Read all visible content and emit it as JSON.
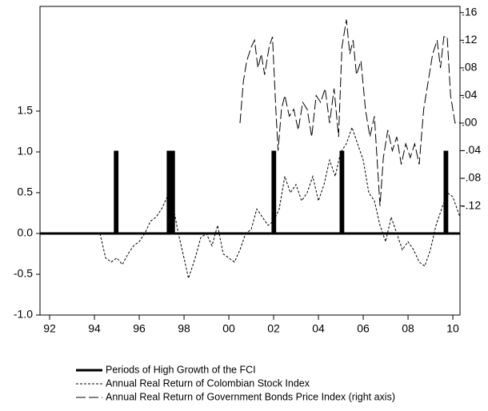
{
  "chart_data": {
    "type": "line",
    "xlim": [
      1991.57,
      2010.32
    ],
    "xticks": [
      {
        "value": 1992,
        "label": "92"
      },
      {
        "value": 1994,
        "label": "94"
      },
      {
        "value": 1996,
        "label": "96"
      },
      {
        "value": 1998,
        "label": "98"
      },
      {
        "value": 2000,
        "label": "00"
      },
      {
        "value": 2002,
        "label": "02"
      },
      {
        "value": 2004,
        "label": "04"
      },
      {
        "value": 2006,
        "label": "06"
      },
      {
        "value": 2008,
        "label": "08"
      },
      {
        "value": 2010,
        "label": "10"
      }
    ],
    "ylim": [
      -1.0,
      2.784
    ],
    "yticks": [
      {
        "value": -1.0,
        "label": "-1.0"
      },
      {
        "value": -0.5,
        "label": "-0.5"
      },
      {
        "value": 0.0,
        "label": "0.0"
      },
      {
        "value": 0.5,
        "label": "0.5"
      },
      {
        "value": 1.0,
        "label": "1.0"
      },
      {
        "value": 1.5,
        "label": "1.5"
      }
    ],
    "y2lim": [
      -0.278,
      0.169
    ],
    "y2ticks": [
      {
        "value": -0.12,
        "label": "-.12"
      },
      {
        "value": -0.08,
        "label": "-.08"
      },
      {
        "value": -0.04,
        "label": "-.04"
      },
      {
        "value": 0.0,
        "label": ".00"
      },
      {
        "value": 0.04,
        "label": ".04"
      },
      {
        "value": 0.08,
        "label": ".08"
      },
      {
        "value": 0.12,
        "label": ".12"
      },
      {
        "value": 0.16,
        "label": ".16"
      }
    ],
    "series": [
      {
        "name": "Periods of High Growth of the FCI",
        "color": "#000000",
        "line_style": "solid",
        "line_width": 3,
        "x": [
          1991.57,
          1994.92,
          1994.92,
          1995.02,
          1995.02,
          1997.28,
          1997.28,
          1997.36,
          1997.36,
          1997.46,
          1997.46,
          1997.54,
          1997.54,
          2001.96,
          2001.96,
          2002.06,
          2002.06,
          2005.0,
          2005.0,
          2005.1,
          2005.1,
          2009.64,
          2009.64,
          2009.74,
          2009.74,
          2010.32
        ],
        "values": [
          0,
          0,
          1,
          1,
          0,
          0,
          1,
          1,
          0,
          0,
          1,
          1,
          0,
          0,
          1,
          1,
          0,
          0,
          1,
          1,
          0,
          0,
          1,
          1,
          0,
          0
        ]
      },
      {
        "name": "Annual Real Return of Colombian Stock Index",
        "color": "#000000",
        "line_style": "short-dash",
        "line_width": 1,
        "x": [
          1994.25,
          1994.5,
          1994.75,
          1995.0,
          1995.25,
          1995.5,
          1995.75,
          1996.0,
          1996.25,
          1996.5,
          1996.75,
          1997.0,
          1997.25,
          1997.5,
          1997.75,
          1998.0,
          1998.2,
          1998.5,
          1998.75,
          1999.0,
          1999.25,
          1999.5,
          1999.75,
          2000.0,
          2000.25,
          2000.5,
          2000.75,
          2001.0,
          2001.25,
          2001.5,
          2001.75,
          2002.0,
          2002.25,
          2002.5,
          2002.75,
          2003.0,
          2003.25,
          2003.5,
          2003.75,
          2004.0,
          2004.25,
          2004.5,
          2004.75,
          2005.0,
          2005.25,
          2005.5,
          2005.75,
          2006.0,
          2006.25,
          2006.5,
          2006.75,
          2007.0,
          2007.25,
          2007.5,
          2007.75,
          2008.0,
          2008.25,
          2008.5,
          2008.75,
          2009.0,
          2009.25,
          2009.5,
          2009.75,
          2010.0,
          2010.32
        ],
        "values": [
          0.0,
          -0.3,
          -0.35,
          -0.3,
          -0.38,
          -0.25,
          -0.15,
          -0.1,
          0.0,
          0.15,
          0.2,
          0.3,
          0.45,
          0.35,
          0.0,
          -0.3,
          -0.55,
          -0.3,
          -0.05,
          0.0,
          -0.15,
          0.1,
          -0.25,
          -0.3,
          -0.35,
          -0.2,
          0.0,
          0.05,
          0.3,
          0.2,
          0.1,
          0.15,
          0.3,
          0.7,
          0.5,
          0.6,
          0.4,
          0.5,
          0.7,
          0.4,
          0.6,
          0.9,
          0.7,
          1.0,
          1.1,
          1.3,
          1.1,
          0.9,
          0.5,
          0.4,
          0.1,
          -0.1,
          0.2,
          0.0,
          -0.2,
          -0.1,
          -0.2,
          -0.35,
          -0.4,
          -0.2,
          0.1,
          0.3,
          0.5,
          0.45,
          0.2
        ]
      },
      {
        "name": "Annual Real Return of Government Bonds Price Index (right axis)",
        "color": "#000000",
        "line_style": "long-dash",
        "line_width": 1,
        "axis": "y2",
        "x": [
          2000.5,
          2000.65,
          2000.8,
          2001.0,
          2001.15,
          2001.3,
          2001.45,
          2001.6,
          2001.8,
          2001.95,
          2002.1,
          2002.2,
          2002.35,
          2002.5,
          2002.7,
          2002.9,
          2003.1,
          2003.3,
          2003.5,
          2003.7,
          2003.9,
          2004.1,
          2004.3,
          2004.5,
          2004.7,
          2004.9,
          2005.05,
          2005.25,
          2005.4,
          2005.55,
          2005.7,
          2005.9,
          2006.1,
          2006.3,
          2006.5,
          2006.75,
          2006.9,
          2007.1,
          2007.3,
          2007.5,
          2007.7,
          2007.9,
          2008.1,
          2008.3,
          2008.5,
          2008.7,
          2008.9,
          2009.1,
          2009.3,
          2009.45,
          2009.6,
          2009.75,
          2009.9,
          2010.1,
          2010.32
        ],
        "values": [
          0.0,
          0.06,
          0.09,
          0.11,
          0.12,
          0.08,
          0.1,
          0.07,
          0.11,
          0.125,
          0.02,
          -0.04,
          0.02,
          0.04,
          0.01,
          0.02,
          -0.01,
          0.03,
          0.02,
          -0.02,
          0.04,
          0.03,
          0.05,
          0.0,
          0.05,
          -0.02,
          0.11,
          0.15,
          0.1,
          0.12,
          0.07,
          0.09,
          0.02,
          -0.02,
          0.01,
          -0.12,
          -0.05,
          -0.01,
          -0.04,
          -0.02,
          -0.06,
          -0.03,
          -0.05,
          -0.03,
          -0.06,
          0.02,
          0.06,
          0.1,
          0.12,
          0.08,
          0.125,
          0.125,
          0.04,
          0.0,
          0.0
        ]
      }
    ]
  }
}
